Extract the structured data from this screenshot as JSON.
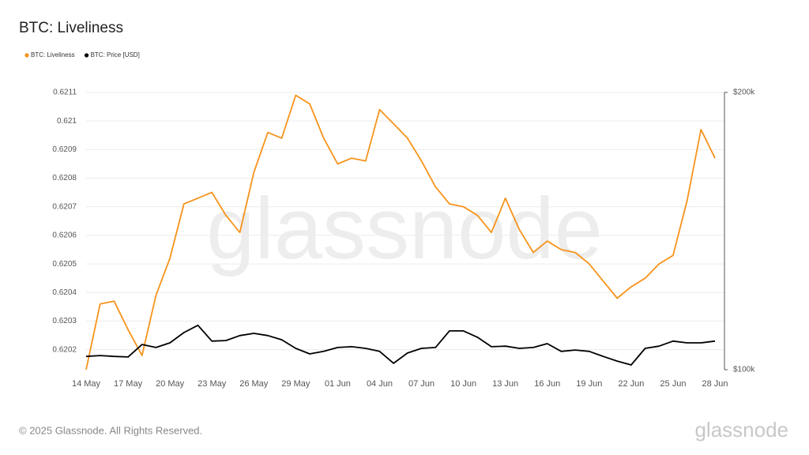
{
  "chart_data": {
    "type": "line",
    "title": "BTC: Liveliness",
    "footer": "© 2025 Glassnode. All Rights Reserved.",
    "watermark": "glassnode",
    "logo": "glassnode",
    "grid": true,
    "legend": "top-left",
    "categories": [
      "14 May",
      null,
      null,
      "17 May",
      null,
      null,
      "20 May",
      null,
      null,
      "23 May",
      null,
      null,
      "26 May",
      null,
      null,
      "29 May",
      null,
      null,
      "01 Jun",
      null,
      null,
      "04 Jun",
      null,
      null,
      "07 Jun",
      null,
      null,
      "10 Jun",
      null,
      null,
      "13 Jun",
      null,
      null,
      "16 Jun",
      null,
      null,
      "19 Jun",
      null,
      null,
      "22 Jun",
      null,
      null,
      "25 Jun",
      null,
      null,
      "28 Jun"
    ],
    "ylim": [
      0.62013,
      0.6211
    ],
    "yticks": [
      0.6202,
      0.6203,
      0.6204,
      0.6205,
      0.6206,
      0.6207,
      0.6208,
      0.6209,
      0.621,
      0.6211
    ],
    "y2lim": [
      100000,
      200000
    ],
    "y2ticks": [
      {
        "value": 100000,
        "label": "$100k"
      },
      {
        "value": 200000,
        "label": "$200k"
      }
    ],
    "series": [
      {
        "name": "BTC: Liveliness",
        "color": "#f7931a",
        "values": [
          0.62013,
          0.62036,
          0.62037,
          0.62027,
          0.62018,
          0.62039,
          0.62052,
          0.62071,
          0.62073,
          0.62075,
          0.62067,
          0.62061,
          0.62082,
          0.62096,
          0.62094,
          0.62109,
          0.62106,
          0.62094,
          0.62085,
          0.62087,
          0.62086,
          0.62104,
          0.62099,
          0.62094,
          0.62086,
          0.62077,
          0.62071,
          0.6207,
          0.62067,
          0.62061,
          0.62073,
          0.62062,
          0.62054,
          0.62058,
          0.62055,
          0.62054,
          0.6205,
          0.62044,
          0.62038,
          0.62042,
          0.62045,
          0.6205,
          0.62053,
          0.62072,
          0.62097,
          0.62087
        ]
      },
      {
        "name": "BTC: Price [USD]",
        "color": "#000000",
        "axis": "y2",
        "values": [
          104800,
          105100,
          104800,
          104600,
          109100,
          108000,
          109700,
          113400,
          116000,
          110300,
          110500,
          112300,
          113100,
          112300,
          110800,
          107700,
          105700,
          106600,
          108000,
          108300,
          107700,
          106600,
          102300,
          106000,
          107700,
          108000,
          114000,
          114000,
          111700,
          108300,
          108500,
          107700,
          108000,
          109400,
          106600,
          107100,
          106600,
          104800,
          103100,
          101700,
          107700,
          108500,
          110300,
          109700,
          109700,
          110300
        ]
      }
    ]
  }
}
